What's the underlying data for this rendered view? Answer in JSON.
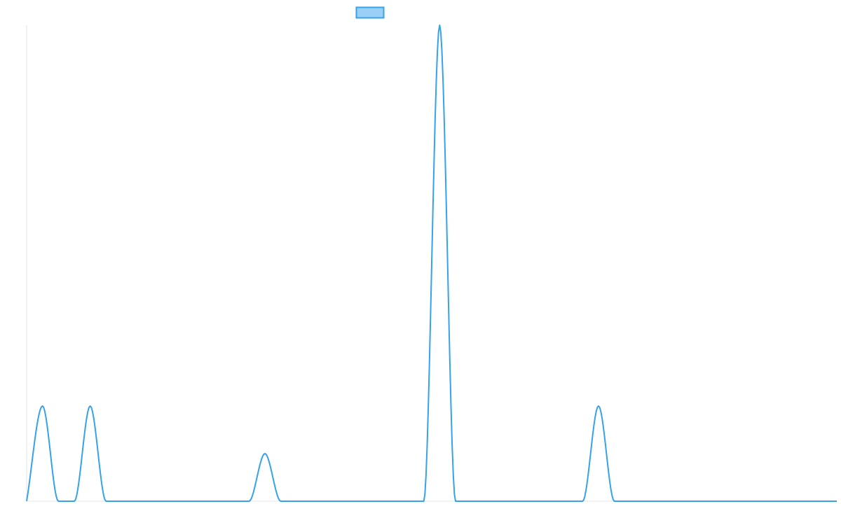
{
  "chart_data": {
    "type": "line",
    "title": "",
    "xlabel": "",
    "ylabel": "",
    "grid": false,
    "legend": {
      "position": "top-center",
      "entries": [
        {
          "label": "",
          "color": "#36a2eb",
          "fill": "rgba(54,162,235,0.5)"
        }
      ]
    },
    "xlim": [
      0,
      51
    ],
    "ylim": [
      0,
      10
    ],
    "series": [
      {
        "color": "#36a2eb",
        "x": [
          0,
          1,
          2,
          3,
          4,
          5,
          6,
          7,
          8,
          9,
          10,
          11,
          12,
          13,
          14,
          15,
          16,
          17,
          18,
          19,
          20,
          21,
          22,
          23,
          24,
          25,
          26,
          27,
          28,
          29,
          30,
          31,
          32,
          33,
          34,
          35,
          36,
          37,
          38,
          39,
          40,
          41,
          42,
          43,
          44,
          45,
          46,
          47,
          48,
          49,
          50,
          51
        ],
        "values": [
          0,
          2,
          0,
          0,
          2,
          0,
          0,
          0,
          0,
          0,
          0,
          0,
          0,
          0,
          0,
          1,
          0,
          0,
          0,
          0,
          0,
          0,
          0,
          0,
          0,
          0,
          10,
          0,
          0,
          0,
          0,
          0,
          0,
          0,
          0,
          0,
          2,
          0,
          0,
          0,
          0,
          0,
          0,
          0,
          0,
          0,
          0,
          0,
          0,
          0,
          0,
          0
        ]
      }
    ]
  }
}
